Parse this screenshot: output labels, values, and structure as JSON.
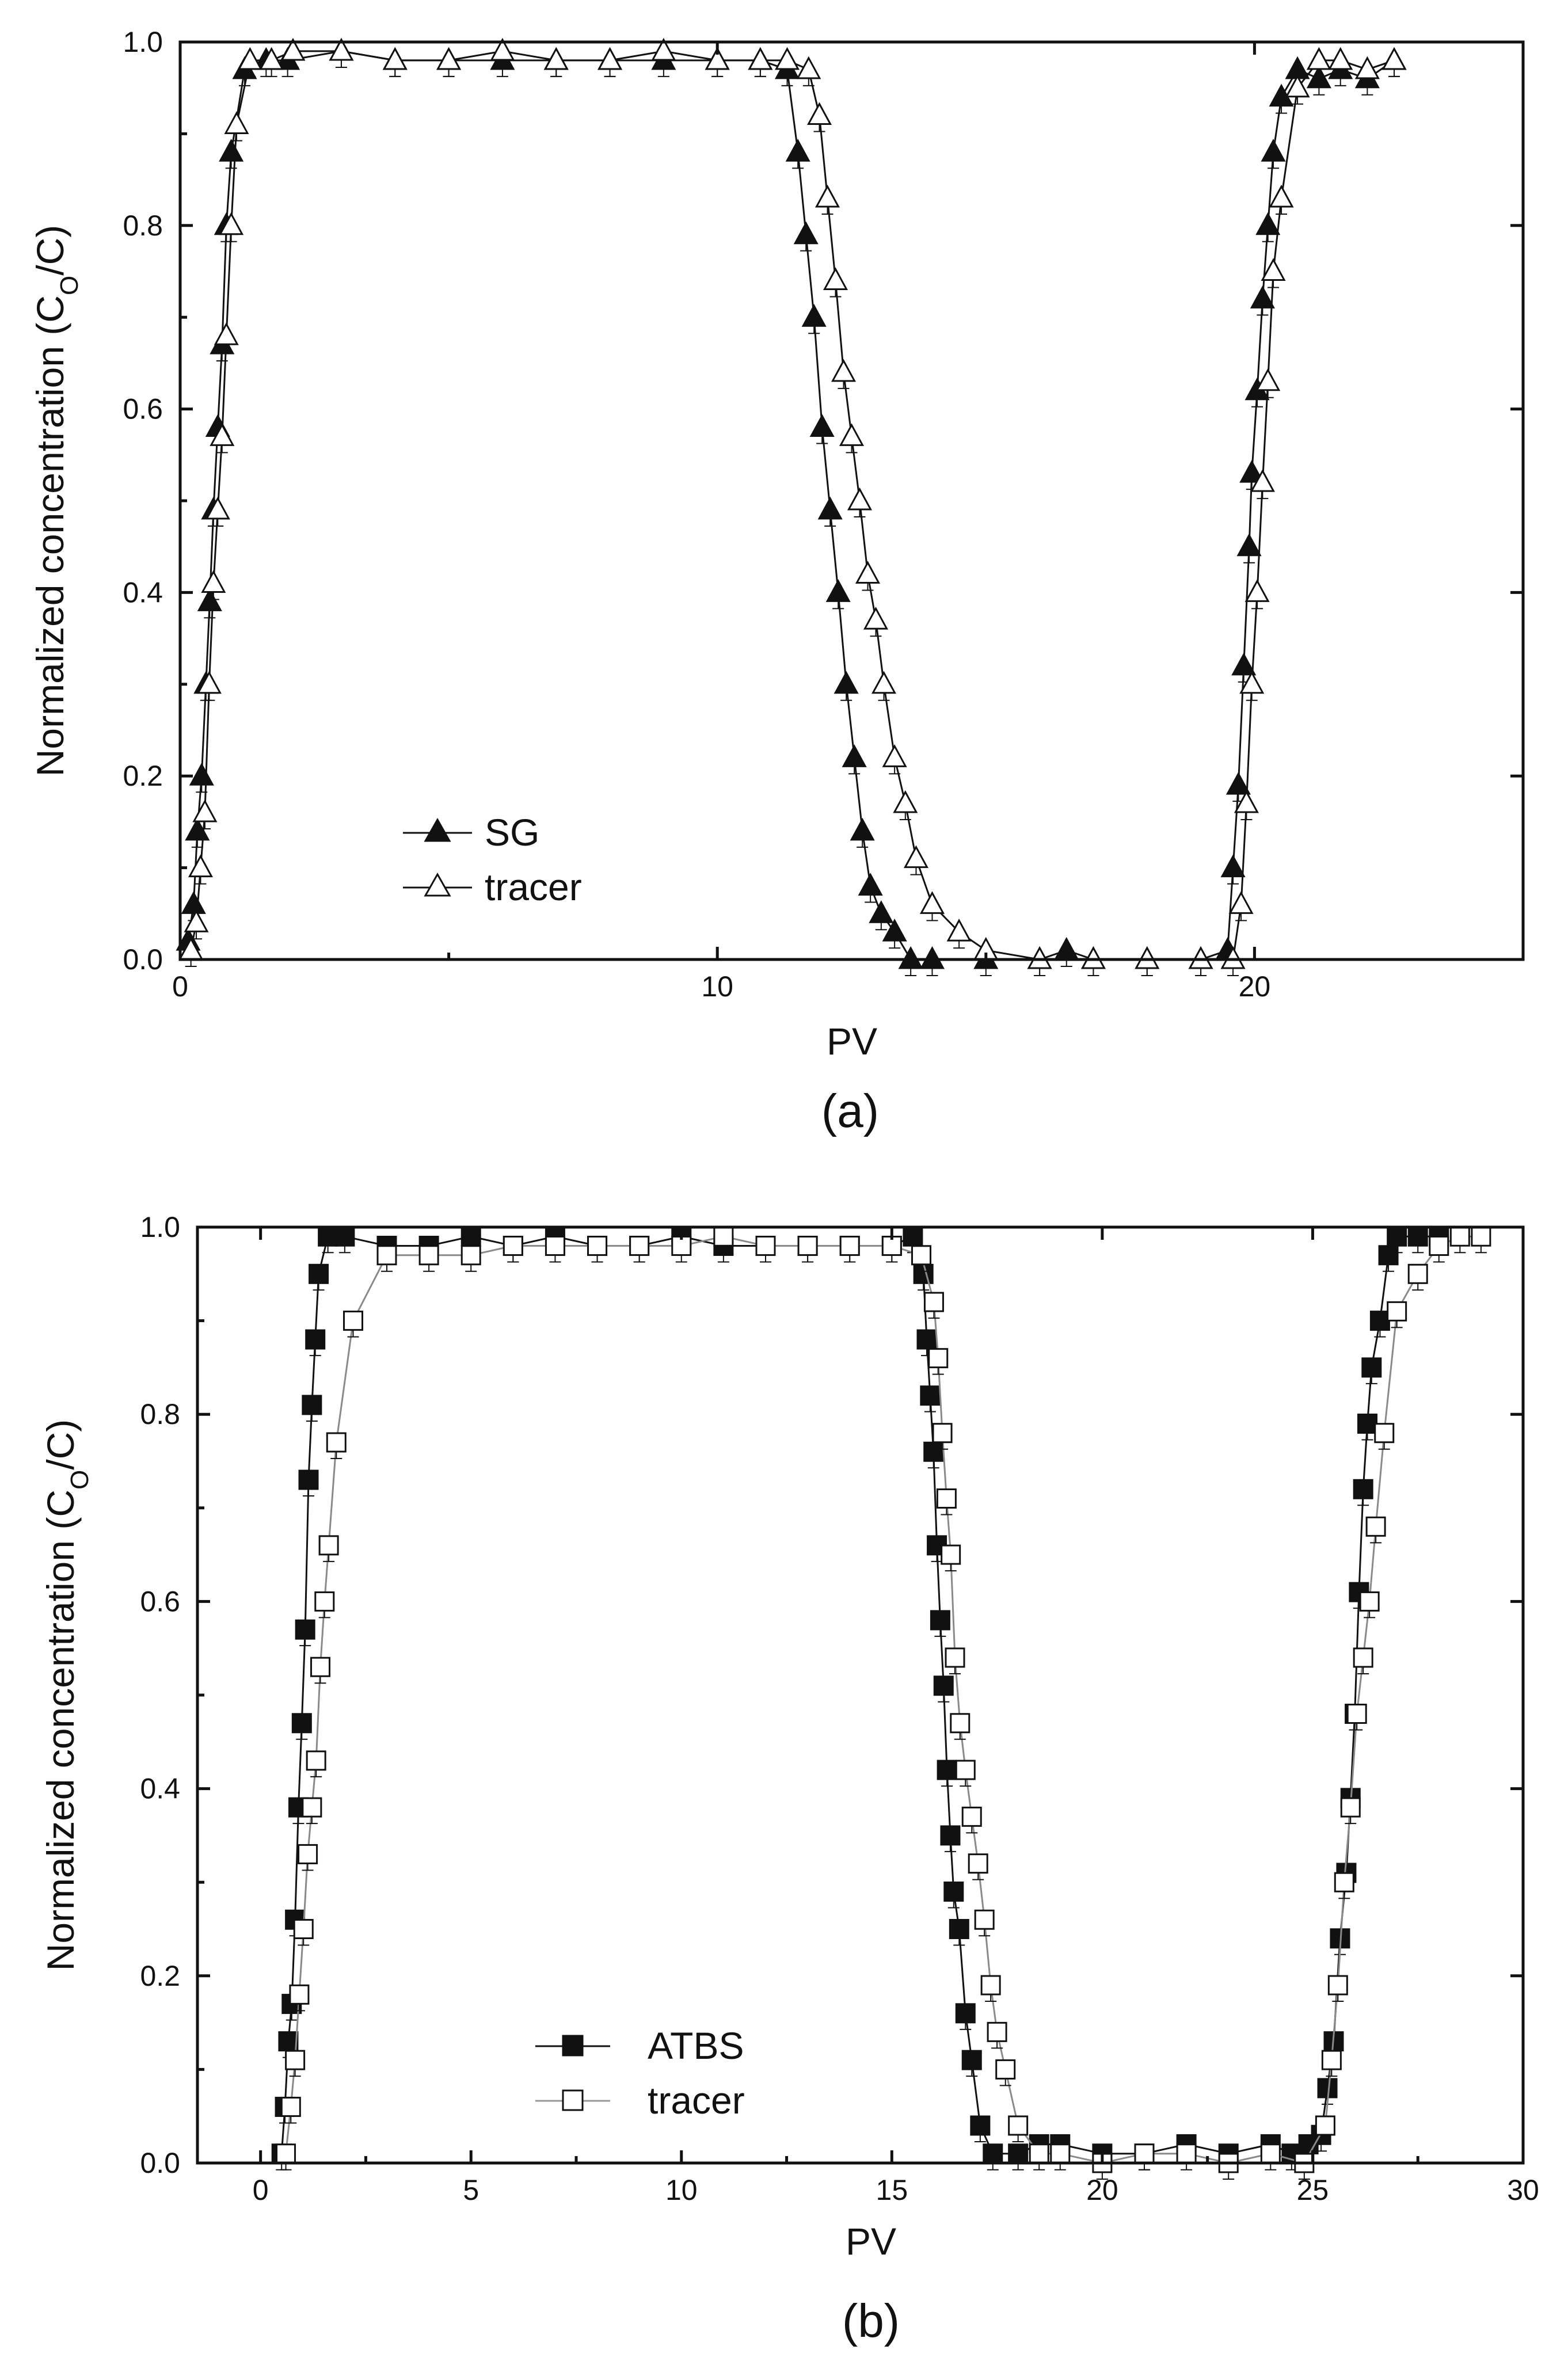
{
  "figure": {
    "panels": [
      "(a)",
      "(b)"
    ]
  },
  "chart_data": [
    {
      "type": "line",
      "panel_label": "(a)",
      "xlabel": "PV",
      "ylabel_main": "Normalized concentration (C",
      "ylabel_sub": "O",
      "ylabel_end": "/C)",
      "xlim": [
        0,
        25
      ],
      "ylim": [
        0,
        1.0
      ],
      "xticks": [
        0,
        10,
        20
      ],
      "xtick_labels": [
        "0",
        "10",
        "20"
      ],
      "yticks": [
        0,
        0.2,
        0.4,
        0.6,
        0.8,
        1.0
      ],
      "ytick_labels": [
        "0.0",
        "0.2",
        "0.4",
        "0.6",
        "0.8",
        "1.0"
      ],
      "legend_position": "lower-left",
      "series": [
        {
          "name": "SG",
          "marker": "triangle-filled",
          "color": "#111111",
          "x": [
            0.15,
            0.25,
            0.32,
            0.4,
            0.48,
            0.55,
            0.62,
            0.7,
            0.78,
            0.86,
            0.95,
            1.2,
            1.6,
            2.0,
            3.0,
            4.0,
            5.0,
            6.0,
            7.0,
            8.0,
            9.0,
            10.0,
            10.8,
            11.3,
            11.5,
            11.65,
            11.8,
            11.95,
            12.1,
            12.25,
            12.4,
            12.55,
            12.7,
            12.85,
            13.05,
            13.3,
            13.6,
            14.0,
            15.0,
            16.0,
            16.5,
            17.0,
            18.0,
            19.0,
            19.5,
            19.6,
            19.7,
            19.8,
            19.9,
            19.95,
            20.05,
            20.15,
            20.25,
            20.35,
            20.5,
            20.8,
            21.2,
            21.6,
            22.1,
            22.6
          ],
          "y": [
            0.02,
            0.06,
            0.14,
            0.2,
            0.3,
            0.39,
            0.49,
            0.58,
            0.67,
            0.8,
            0.88,
            0.97,
            0.98,
            0.98,
            0.99,
            0.98,
            0.98,
            0.98,
            0.98,
            0.98,
            0.98,
            0.98,
            0.98,
            0.97,
            0.88,
            0.79,
            0.7,
            0.58,
            0.49,
            0.4,
            0.3,
            0.22,
            0.14,
            0.08,
            0.05,
            0.03,
            0.0,
            0.0,
            0.0,
            0.0,
            0.01,
            0.0,
            0.0,
            0.0,
            0.01,
            0.1,
            0.19,
            0.32,
            0.45,
            0.53,
            0.62,
            0.72,
            0.8,
            0.88,
            0.94,
            0.97,
            0.96,
            0.97,
            0.96,
            0.98
          ]
        },
        {
          "name": "tracer",
          "marker": "triangle-open",
          "color": "#111111",
          "x": [
            0.2,
            0.3,
            0.38,
            0.46,
            0.54,
            0.62,
            0.7,
            0.78,
            0.86,
            0.95,
            1.05,
            1.3,
            1.7,
            2.1,
            3.0,
            4.0,
            5.0,
            6.0,
            7.0,
            8.0,
            9.0,
            10.0,
            10.8,
            11.3,
            11.7,
            11.9,
            12.05,
            12.2,
            12.35,
            12.5,
            12.65,
            12.8,
            12.95,
            13.1,
            13.3,
            13.5,
            13.7,
            14.0,
            14.5,
            15.0,
            16.0,
            17.0,
            18.0,
            19.0,
            19.6,
            19.75,
            19.85,
            19.95,
            20.05,
            20.15,
            20.25,
            20.35,
            20.5,
            20.8,
            21.2,
            21.6,
            22.1,
            22.6
          ],
          "y": [
            0.01,
            0.04,
            0.1,
            0.16,
            0.3,
            0.41,
            0.49,
            0.57,
            0.68,
            0.8,
            0.91,
            0.98,
            0.98,
            0.99,
            0.99,
            0.98,
            0.98,
            0.99,
            0.98,
            0.98,
            0.99,
            0.98,
            0.98,
            0.98,
            0.97,
            0.92,
            0.83,
            0.74,
            0.64,
            0.57,
            0.5,
            0.42,
            0.37,
            0.3,
            0.22,
            0.17,
            0.11,
            0.06,
            0.03,
            0.01,
            0.0,
            0.0,
            0.0,
            0.0,
            0.0,
            0.06,
            0.17,
            0.3,
            0.4,
            0.52,
            0.63,
            0.75,
            0.83,
            0.95,
            0.98,
            0.98,
            0.97,
            0.98
          ]
        }
      ]
    },
    {
      "type": "line",
      "panel_label": "(b)",
      "xlabel": "PV",
      "ylabel_main": "Normalized concentration (C",
      "ylabel_sub": "O",
      "ylabel_end": "/C)",
      "xlim": [
        -1.5,
        30
      ],
      "ylim": [
        0,
        1.0
      ],
      "xticks": [
        0,
        5,
        10,
        15,
        20,
        25,
        30
      ],
      "xtick_labels": [
        "0",
        "5",
        "10",
        "15",
        "20",
        "25",
        "30"
      ],
      "yticks": [
        0,
        0.2,
        0.4,
        0.6,
        0.8,
        1.0
      ],
      "ytick_labels": [
        "0.0",
        "0.2",
        "0.4",
        "0.6",
        "0.8",
        "1.0"
      ],
      "legend_position": "lower-left",
      "series": [
        {
          "name": "ATBS",
          "marker": "square-filled",
          "color": "#111111",
          "x": [
            0.5,
            0.58,
            0.66,
            0.74,
            0.82,
            0.9,
            0.98,
            1.06,
            1.14,
            1.22,
            1.3,
            1.38,
            1.6,
            2.0,
            3.0,
            4.0,
            5.0,
            6.0,
            7.0,
            8.0,
            9.0,
            10.0,
            11.0,
            12.0,
            13.0,
            14.0,
            15.0,
            15.5,
            15.75,
            15.83,
            15.91,
            15.99,
            16.07,
            16.15,
            16.23,
            16.31,
            16.39,
            16.47,
            16.6,
            16.75,
            16.9,
            17.1,
            17.4,
            18.0,
            18.5,
            19.0,
            20.0,
            21.0,
            22.0,
            23.0,
            24.0,
            24.5,
            24.9,
            25.2,
            25.35,
            25.5,
            25.65,
            25.8,
            25.9,
            26.0,
            26.1,
            26.2,
            26.3,
            26.4,
            26.6,
            26.8,
            27.0,
            27.5,
            28.0
          ],
          "y": [
            0.01,
            0.06,
            0.13,
            0.17,
            0.26,
            0.38,
            0.47,
            0.57,
            0.73,
            0.81,
            0.88,
            0.95,
            0.99,
            0.99,
            0.98,
            0.98,
            0.99,
            0.98,
            0.99,
            0.98,
            0.98,
            0.99,
            0.98,
            0.98,
            0.98,
            0.98,
            0.98,
            0.99,
            0.95,
            0.88,
            0.82,
            0.76,
            0.66,
            0.58,
            0.51,
            0.42,
            0.35,
            0.29,
            0.25,
            0.16,
            0.11,
            0.04,
            0.01,
            0.01,
            0.02,
            0.02,
            0.01,
            0.01,
            0.02,
            0.01,
            0.02,
            0.01,
            0.02,
            0.03,
            0.08,
            0.13,
            0.24,
            0.31,
            0.39,
            0.48,
            0.61,
            0.72,
            0.79,
            0.85,
            0.9,
            0.97,
            0.99,
            0.99,
            0.99
          ]
        },
        {
          "name": "tracer",
          "marker": "square-open",
          "color": "#111111",
          "x": [
            0.6,
            0.72,
            0.82,
            0.92,
            1.02,
            1.12,
            1.22,
            1.32,
            1.42,
            1.52,
            1.62,
            1.8,
            2.2,
            3.0,
            4.0,
            5.0,
            6.0,
            7.0,
            8.0,
            9.0,
            10.0,
            11.0,
            12.0,
            13.0,
            14.0,
            15.0,
            15.7,
            16.0,
            16.1,
            16.2,
            16.3,
            16.4,
            16.5,
            16.62,
            16.75,
            16.9,
            17.05,
            17.2,
            17.35,
            17.5,
            17.7,
            18.0,
            18.5,
            19.0,
            20.0,
            21.0,
            22.0,
            23.0,
            24.0,
            24.8,
            25.3,
            25.45,
            25.6,
            25.75,
            25.9,
            26.05,
            26.2,
            26.35,
            26.5,
            26.7,
            27.0,
            27.5,
            28.0,
            28.5,
            29.0
          ],
          "y": [
            0.01,
            0.06,
            0.11,
            0.18,
            0.25,
            0.33,
            0.38,
            0.43,
            0.53,
            0.6,
            0.66,
            0.77,
            0.9,
            0.97,
            0.97,
            0.97,
            0.98,
            0.98,
            0.98,
            0.98,
            0.98,
            0.99,
            0.98,
            0.98,
            0.98,
            0.98,
            0.97,
            0.92,
            0.86,
            0.78,
            0.71,
            0.65,
            0.54,
            0.47,
            0.42,
            0.37,
            0.32,
            0.26,
            0.19,
            0.14,
            0.1,
            0.04,
            0.01,
            0.01,
            0.0,
            0.01,
            0.01,
            0.0,
            0.01,
            0.0,
            0.04,
            0.11,
            0.19,
            0.3,
            0.38,
            0.48,
            0.54,
            0.6,
            0.68,
            0.78,
            0.91,
            0.95,
            0.98,
            0.99,
            0.99
          ]
        }
      ]
    }
  ]
}
